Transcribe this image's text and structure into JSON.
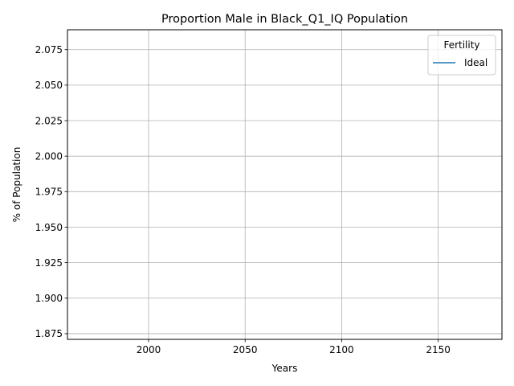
{
  "chart_data": {
    "type": "line",
    "title": "Proportion Male in Black_Q1_IQ Population",
    "xlabel": "Years",
    "ylabel": "% of Population",
    "xlim": [
      1958,
      2183
    ],
    "ylim": [
      1.871,
      2.089
    ],
    "x_ticks": [
      2000,
      2050,
      2100,
      2150
    ],
    "y_ticks": [
      1.875,
      1.9,
      1.925,
      1.95,
      1.975,
      2.0,
      2.025,
      2.05,
      2.075
    ],
    "x_tick_labels": [
      "2000",
      "2050",
      "2100",
      "2150"
    ],
    "y_tick_labels": [
      "1.875",
      "1.900",
      "1.925",
      "1.950",
      "1.975",
      "2.000",
      "2.025",
      "2.050",
      "2.075"
    ],
    "grid": true,
    "legend": {
      "title": "Fertility",
      "placement": "top-right"
    },
    "series": [
      {
        "name": "Ideal",
        "color": "#1f77b4",
        "x": [],
        "y": []
      }
    ]
  }
}
